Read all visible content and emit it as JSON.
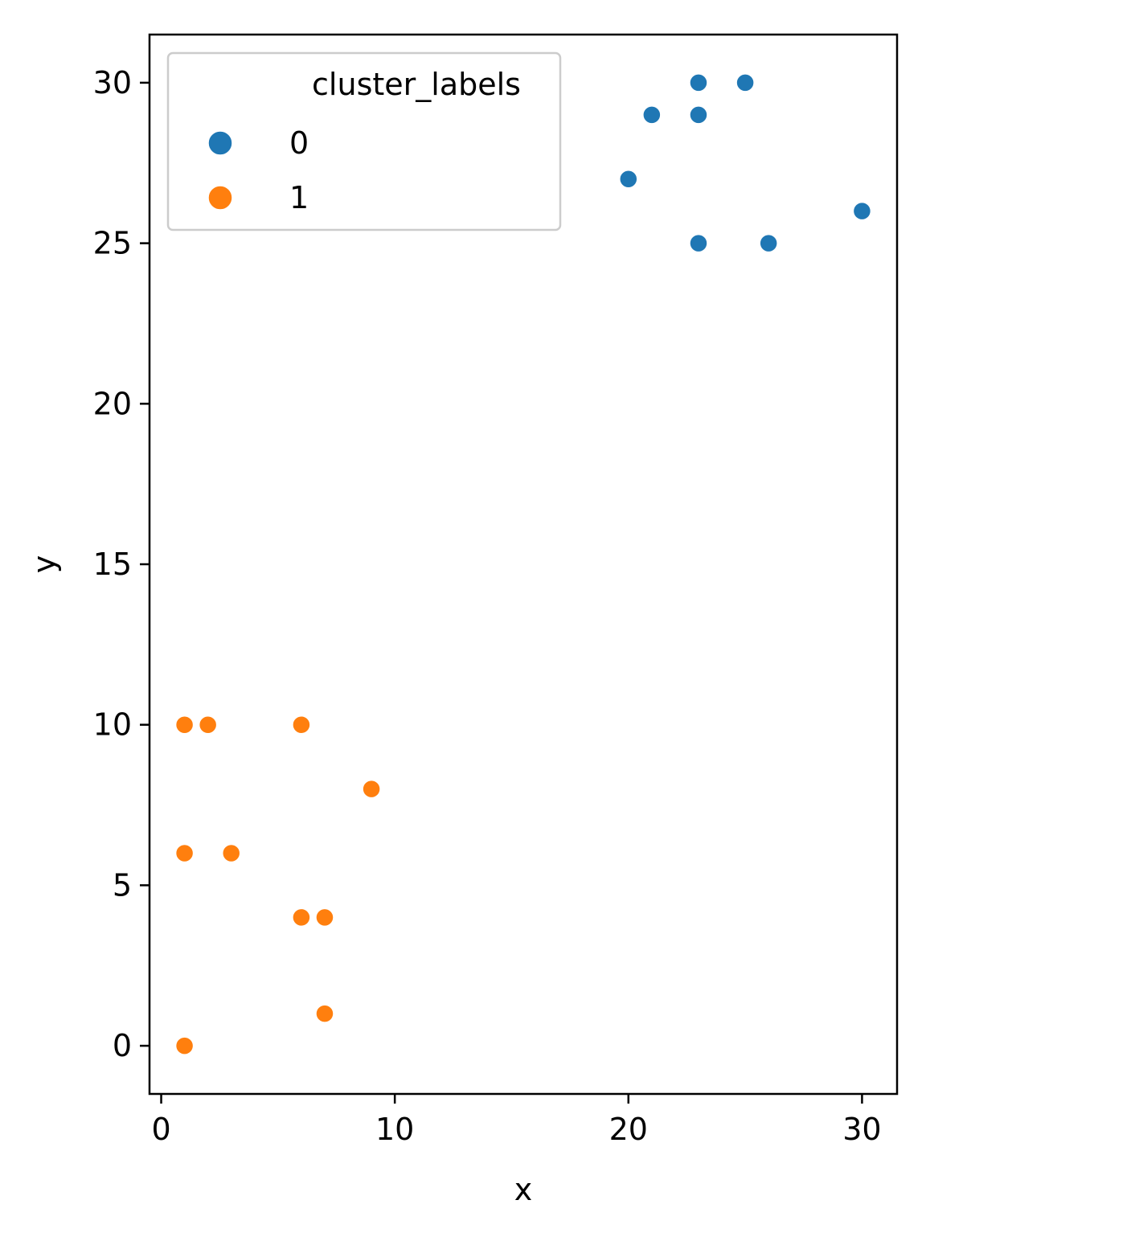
{
  "chart_data": {
    "type": "scatter",
    "xlabel": "x",
    "ylabel": "y",
    "xlim": [
      -0.5,
      31.5
    ],
    "ylim": [
      -1.5,
      31.5
    ],
    "xticks": [
      0,
      10,
      20,
      30
    ],
    "yticks": [
      0,
      5,
      10,
      15,
      20,
      25,
      30
    ],
    "grid": false,
    "legend": {
      "title": "cluster_labels",
      "position": "top-left"
    },
    "series": [
      {
        "name": "0",
        "color": "#1f77b4",
        "x": [
          23,
          25,
          21,
          23,
          20,
          30,
          23,
          26
        ],
        "y": [
          30,
          30,
          29,
          29,
          27,
          26,
          25,
          25
        ]
      },
      {
        "name": "1",
        "color": "#ff7f0e",
        "x": [
          1,
          2,
          6,
          9,
          1,
          3,
          6,
          7,
          7,
          1
        ],
        "y": [
          10,
          10,
          10,
          8,
          6,
          6,
          4,
          4,
          1,
          0
        ]
      }
    ]
  }
}
